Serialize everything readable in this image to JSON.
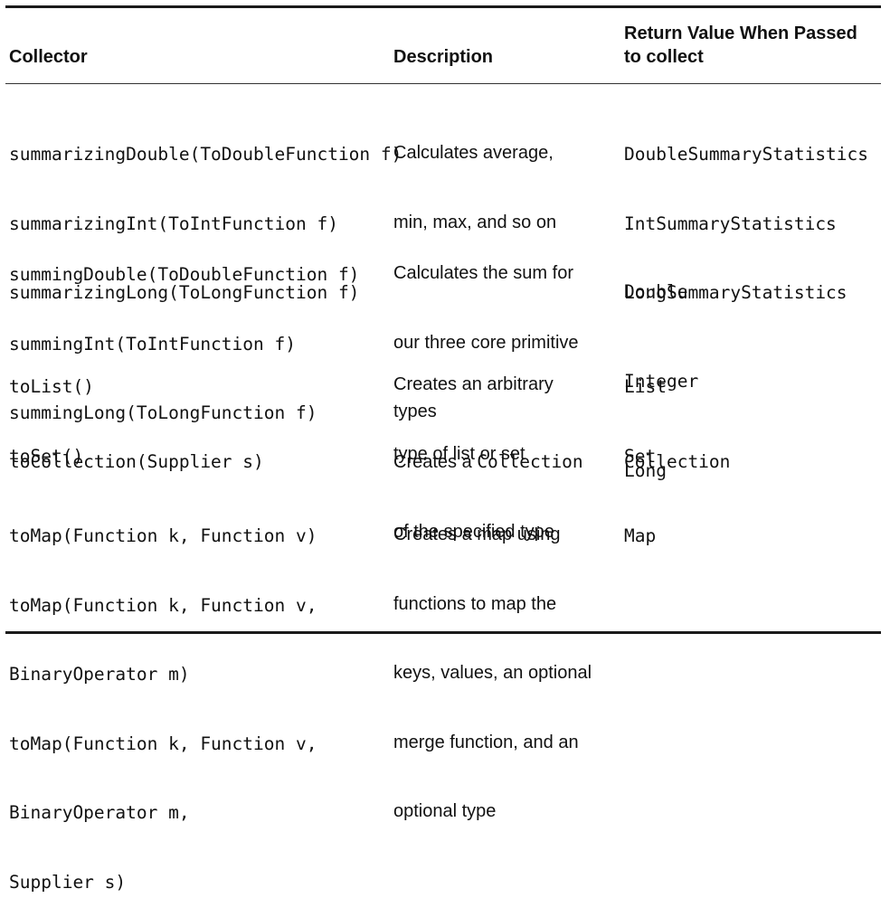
{
  "headers": {
    "collector": "Collector",
    "description": "Description",
    "return_line1": "Return Value When Passed",
    "return_line2": "to collect"
  },
  "rows": [
    {
      "collector": [
        "summarizingDouble(ToDoubleFunction f)",
        "summarizingInt(ToIntFunction f)",
        "summarizingLong(ToLongFunction f)"
      ],
      "description": [
        "Calculates average,",
        "min, max, and so on"
      ],
      "returns": [
        "DoubleSummaryStatistics",
        "IntSummaryStatistics",
        "LongSummaryStatistics"
      ]
    },
    {
      "collector": [
        "summingDouble(ToDoubleFunction f)",
        "summingInt(ToIntFunction f)",
        "summingLong(ToLongFunction f)"
      ],
      "description": [
        "Calculates the sum for",
        "our three core primitive",
        "types"
      ],
      "returns": [
        "Double",
        "Integer",
        "Long"
      ]
    },
    {
      "collector": [
        "toList()",
        "toSet()"
      ],
      "description": [
        "Creates an arbitrary",
        "type of list or set"
      ],
      "returns": [
        "List",
        "Set"
      ]
    },
    {
      "collector": [
        "toCollection(Supplier s)"
      ],
      "description_prefix": "Creates a ",
      "description_code": "Collection",
      "description": [
        "of the specified type"
      ],
      "returns": [
        "Collection"
      ]
    },
    {
      "collector": [
        "toMap(Function k, Function v)",
        "toMap(Function k, Function v,",
        "BinaryOperator m)",
        "toMap(Function k, Function v,",
        "BinaryOperator m,",
        "Supplier s)"
      ],
      "description": [
        "Creates a map using",
        "functions to map the",
        "keys, values, an optional",
        "merge function, and an",
        "optional type"
      ],
      "returns": [
        "Map"
      ]
    }
  ]
}
